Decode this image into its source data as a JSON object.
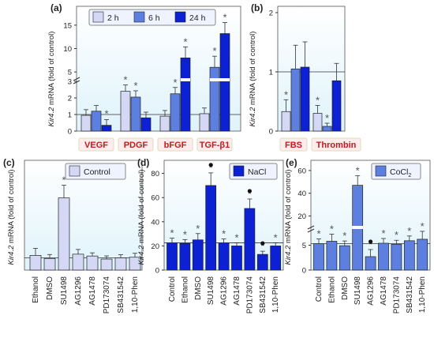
{
  "chart_data": [
    {
      "panel": "(a)",
      "type": "bar",
      "ylabel": "Kir4.2 mRNA (fold of control)",
      "broken_axis": true,
      "lower_ticks": [
        0,
        1,
        2,
        3
      ],
      "upper_ticks": [
        5,
        10,
        15
      ],
      "legend": [
        "2 h",
        "6 h",
        "24 h"
      ],
      "colors": [
        "#d4d8f4",
        "#5c7fe0",
        "#0c20d4"
      ],
      "groups": [
        {
          "label": "VEGF",
          "values": [
            0.95,
            1.2,
            0.35
          ],
          "sig": [
            false,
            false,
            true
          ]
        },
        {
          "label": "PDGF",
          "values": [
            2.4,
            2.05,
            0.8
          ],
          "sig": [
            true,
            true,
            false
          ]
        },
        {
          "label": "bFGF",
          "values": [
            0.9,
            2.25,
            8.0
          ],
          "sig": [
            false,
            true,
            true
          ]
        },
        {
          "label": "TGF-β1",
          "values": [
            1.05,
            6.0,
            13.2
          ],
          "sig": [
            false,
            true,
            true
          ]
        }
      ]
    },
    {
      "panel": "(b)",
      "type": "bar",
      "ylabel": "Kir4.2 mRNA (fold of control)",
      "ticks": [
        0,
        1,
        2
      ],
      "ylim": [
        0,
        2
      ],
      "groups": [
        {
          "label": "FBS",
          "values": [
            0.33,
            1.05,
            1.08
          ],
          "sig": [
            true,
            false,
            false
          ]
        },
        {
          "label": "Thrombin",
          "values": [
            0.3,
            0.08,
            0.85
          ],
          "sig": [
            true,
            true,
            false
          ]
        }
      ]
    },
    {
      "panel": "(c)",
      "type": "bar",
      "ylabel": "Kir4.2 mRNA (fold of control)",
      "legend": "Control",
      "color": "#d4d8f4",
      "ylim": [
        0,
        8.5
      ],
      "categories": [
        "Ethanol",
        "DMSO",
        "SU1498",
        "AG1296",
        "AG1478",
        "PD173074",
        "SB431542",
        "1,10-Phen"
      ],
      "values": [
        1.2,
        0.95,
        5.9,
        1.3,
        1.15,
        0.9,
        1.0,
        1.05
      ],
      "sig": [
        false,
        false,
        true,
        false,
        false,
        false,
        false,
        false
      ]
    },
    {
      "panel": "(d)",
      "type": "bar",
      "ylabel": "Kir4.2 mRNA (fold of control)",
      "legend": "NaCl",
      "color": "#0c20d4",
      "ticks": [
        0,
        20,
        40,
        60,
        80
      ],
      "ylim": [
        0,
        90
      ],
      "categories": [
        "Control",
        "Ethanol",
        "DMSO",
        "SU1498",
        "AG1296",
        "AG1478",
        "PD173074",
        "SB431542",
        "1,10-Phen"
      ],
      "values": [
        22.5,
        22,
        25,
        70,
        22.5,
        20,
        51,
        13,
        20
      ],
      "sig": [
        true,
        true,
        true,
        true,
        true,
        true,
        true,
        true,
        true
      ],
      "dot": [
        false,
        false,
        false,
        true,
        false,
        false,
        true,
        true,
        false
      ]
    },
    {
      "panel": "(e)",
      "type": "bar",
      "ylabel": "Kir4.2 mRNA (fold of control)",
      "legend": "CoCl",
      "legend_sub": "2",
      "color": "#5c7fe0",
      "broken_axis": true,
      "lower_ticks": [
        0,
        5
      ],
      "upper_ticks": [
        20,
        40,
        60
      ],
      "categories": [
        "Control",
        "Ethanol",
        "DMSO",
        "SU1498",
        "AG1296",
        "AG1478",
        "PD173074",
        "SB431542",
        "1,10-Phen"
      ],
      "values": [
        5.3,
        5.8,
        4.9,
        47,
        2.7,
        5.4,
        5.2,
        5.9,
        6.2
      ],
      "sig": [
        true,
        true,
        true,
        true,
        true,
        true,
        true,
        true,
        true
      ],
      "dot": [
        false,
        false,
        false,
        false,
        true,
        false,
        false,
        false,
        false
      ]
    }
  ]
}
